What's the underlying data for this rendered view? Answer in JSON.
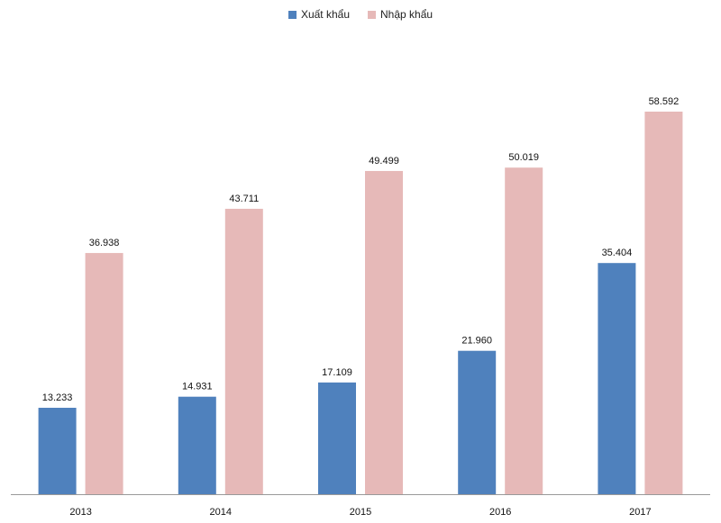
{
  "chart_data": {
    "type": "bar",
    "title": "",
    "xlabel": "",
    "ylabel": "",
    "categories": [
      "2013",
      "2014",
      "2015",
      "2016",
      "2017"
    ],
    "series": [
      {
        "name": "Xuất khẩu",
        "color": "#4f81bd",
        "values": [
          13233,
          14931,
          17109,
          21960,
          35404
        ],
        "labels": [
          "13.233",
          "14.931",
          "17.109",
          "21.960",
          "35.404"
        ]
      },
      {
        "name": "Nhập khẩu",
        "color": "#e6b9b8",
        "values": [
          36938,
          43711,
          49499,
          50019,
          58592
        ],
        "labels": [
          "36.938",
          "43.711",
          "49.499",
          "50.019",
          "58.592"
        ]
      }
    ],
    "ylim": [
      0,
      65000
    ],
    "grid": false,
    "legend": "top-center"
  }
}
